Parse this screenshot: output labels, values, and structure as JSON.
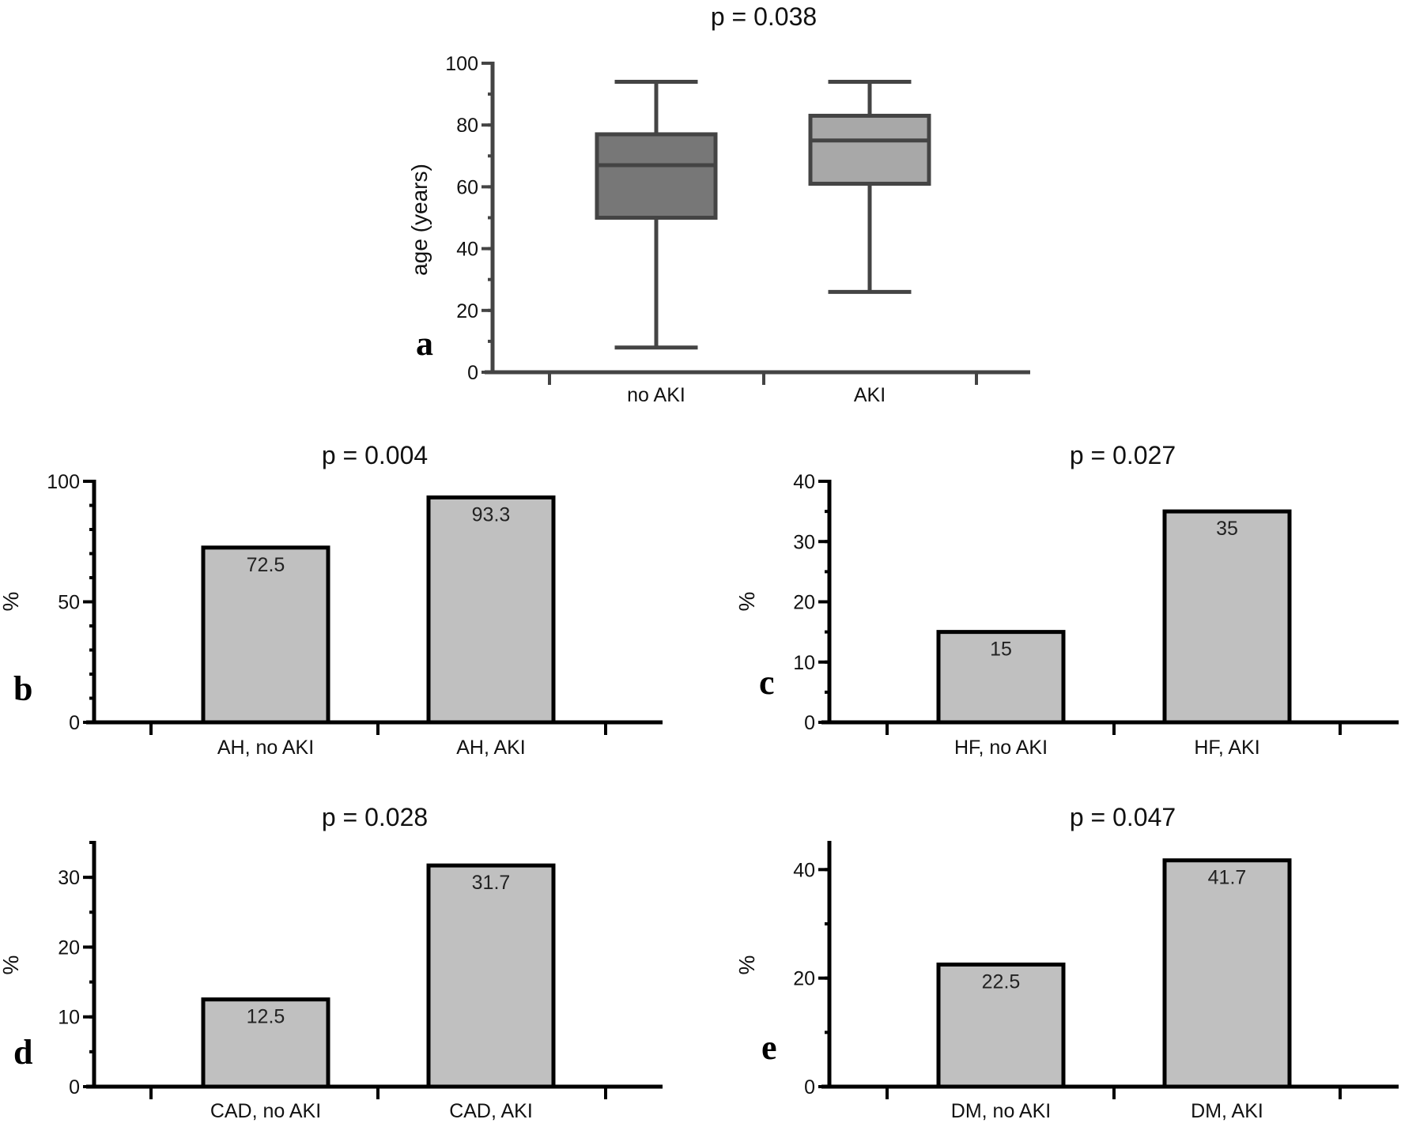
{
  "chart_data": [
    {
      "panel": "a",
      "type": "box",
      "title": "p = 0.038",
      "ylabel": "age (years)",
      "ylim": [
        0,
        100
      ],
      "yticks": [
        0,
        20,
        40,
        60,
        80,
        100
      ],
      "categories": [
        "no AKI",
        "AKI"
      ],
      "boxes": [
        {
          "min": 8,
          "q1": 50,
          "median": 67,
          "q3": 77,
          "max": 94,
          "color": "#777777"
        },
        {
          "min": 26,
          "q1": 61,
          "median": 75,
          "q3": 83,
          "max": 94,
          "color": "#a8a8a8"
        }
      ]
    },
    {
      "panel": "b",
      "type": "bar",
      "title": "p = 0.004",
      "ylabel": "%",
      "ylim": [
        0,
        100
      ],
      "yticks": [
        0,
        50,
        100
      ],
      "categories": [
        "AH, no AKI",
        "AH, AKI"
      ],
      "values": [
        72.5,
        93.3
      ],
      "labels": [
        "72.5",
        "93.3"
      ],
      "color": "#c0c0c0"
    },
    {
      "panel": "c",
      "type": "bar",
      "title": "p = 0.027",
      "ylabel": "%",
      "ylim": [
        0,
        40
      ],
      "yticks": [
        0,
        10,
        20,
        30,
        40
      ],
      "categories": [
        "HF, no AKI",
        "HF, AKI"
      ],
      "values": [
        15,
        35
      ],
      "labels": [
        "15",
        "35"
      ],
      "color": "#c0c0c0"
    },
    {
      "panel": "d",
      "type": "bar",
      "title": "p = 0.028",
      "ylabel": "%",
      "ylim": [
        0,
        35
      ],
      "yticks": [
        0,
        10,
        20,
        30
      ],
      "categories": [
        "CAD, no AKI",
        "CAD, AKI"
      ],
      "values": [
        12.5,
        31.7
      ],
      "labels": [
        "12.5",
        "31.7"
      ],
      "color": "#c0c0c0"
    },
    {
      "panel": "e",
      "type": "bar",
      "title": "p = 0.047",
      "ylabel": "%",
      "ylim": [
        0,
        45
      ],
      "yticks": [
        0,
        20,
        40
      ],
      "categories": [
        "DM, no AKI",
        "DM, AKI"
      ],
      "values": [
        22.5,
        41.7
      ],
      "labels": [
        "22.5",
        "41.7"
      ],
      "color": "#c0c0c0"
    }
  ]
}
